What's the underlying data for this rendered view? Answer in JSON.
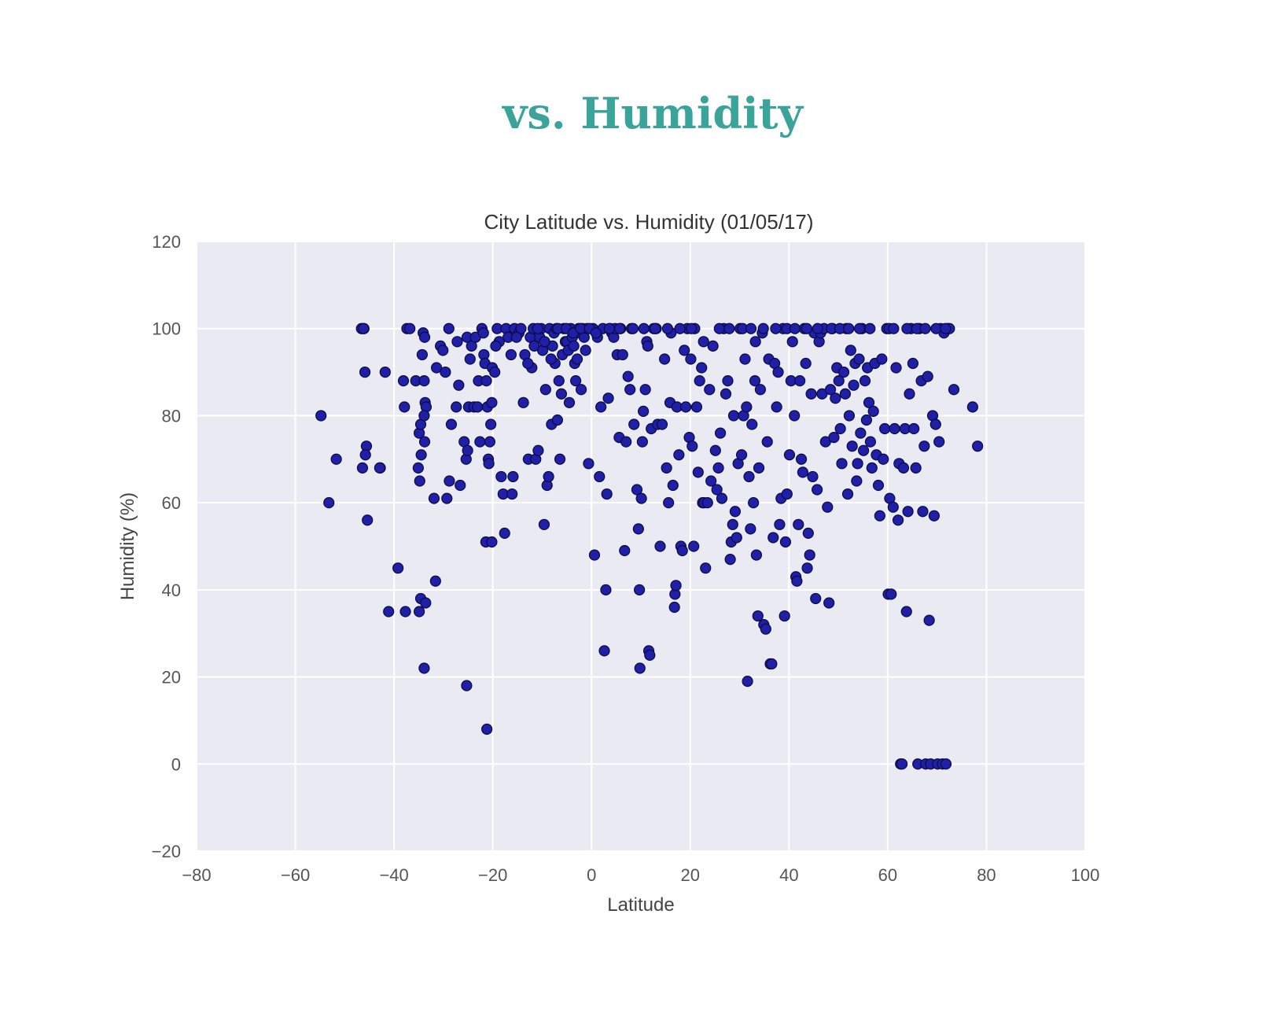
{
  "page": {
    "heading": "vs. Humidity"
  },
  "chart_data": {
    "type": "scatter",
    "title": "City Latitude vs. Humidity (01/05/17)",
    "xlabel": "Latitude",
    "ylabel": "Humidity (%)",
    "xlim": [
      -80,
      100
    ],
    "ylim": [
      -20,
      120
    ],
    "xticks": [
      -80,
      -60,
      -40,
      -20,
      0,
      20,
      40,
      60,
      80,
      100
    ],
    "yticks": [
      -20,
      0,
      20,
      40,
      60,
      80,
      100,
      120
    ],
    "xtick_labels": [
      "−80",
      "−60",
      "−40",
      "−20",
      "0",
      "20",
      "40",
      "60",
      "80",
      "100"
    ],
    "ytick_labels": [
      "−20",
      "0",
      "20",
      "40",
      "60",
      "80",
      "100",
      "120"
    ],
    "grid": true,
    "background_color": "#eaeaf2",
    "point_color": "#1f1fa8",
    "point_edge_color": "#0b0b40",
    "points": [
      [
        -54.8,
        80
      ],
      [
        -53.2,
        60
      ],
      [
        -51.7,
        70
      ],
      [
        -46.6,
        100
      ],
      [
        -46.1,
        100
      ],
      [
        -45.9,
        90
      ],
      [
        -45.6,
        73
      ],
      [
        -45.8,
        71
      ],
      [
        -46.4,
        68
      ],
      [
        -45.4,
        56
      ],
      [
        -42.8,
        68
      ],
      [
        -42.9,
        68
      ],
      [
        -41.8,
        90
      ],
      [
        -41.1,
        35
      ],
      [
        -39.2,
        45
      ],
      [
        -38.1,
        88
      ],
      [
        -37.9,
        82
      ],
      [
        -37.4,
        100
      ],
      [
        -37.7,
        35
      ],
      [
        -35.6,
        88
      ],
      [
        -35.1,
        68
      ],
      [
        -34.9,
        76
      ],
      [
        -34.6,
        78
      ],
      [
        -34.8,
        65
      ],
      [
        -34.5,
        71
      ],
      [
        -34.3,
        94
      ],
      [
        -34.1,
        99
      ],
      [
        -33.8,
        98
      ],
      [
        -33.9,
        88
      ],
      [
        -33.7,
        83
      ],
      [
        -33.5,
        82
      ],
      [
        -33.8,
        74
      ],
      [
        -33.9,
        80
      ],
      [
        -34.9,
        35
      ],
      [
        -34.6,
        38
      ],
      [
        -33.6,
        37
      ],
      [
        -33.9,
        22
      ],
      [
        -31.9,
        61
      ],
      [
        -31.6,
        42
      ],
      [
        -31.4,
        91
      ],
      [
        -30.6,
        96
      ],
      [
        -30.1,
        95
      ],
      [
        -29.6,
        90
      ],
      [
        -29.3,
        61
      ],
      [
        -28.9,
        100
      ],
      [
        -28.8,
        65
      ],
      [
        -28.4,
        78
      ],
      [
        -27.4,
        82
      ],
      [
        -26.9,
        87
      ],
      [
        -26.6,
        64
      ],
      [
        -25.8,
        74
      ],
      [
        -25.4,
        70
      ],
      [
        -25.1,
        72
      ],
      [
        -24.9,
        82
      ],
      [
        -25.2,
        98
      ],
      [
        -24.6,
        93
      ],
      [
        -24.3,
        96
      ],
      [
        -23.8,
        82
      ],
      [
        -23.5,
        98
      ],
      [
        -23.1,
        82
      ],
      [
        -22.9,
        88
      ],
      [
        -22.6,
        74
      ],
      [
        -22.2,
        100
      ],
      [
        -21.9,
        99
      ],
      [
        -21.8,
        94
      ],
      [
        -21.6,
        92
      ],
      [
        -21.3,
        88
      ],
      [
        -21.1,
        82
      ],
      [
        -20.9,
        70
      ],
      [
        -20.8,
        69
      ],
      [
        -20.6,
        74
      ],
      [
        -20.4,
        78
      ],
      [
        -20.2,
        83
      ],
      [
        -20.1,
        91
      ],
      [
        -19.6,
        90
      ],
      [
        -21.4,
        51
      ],
      [
        -20.2,
        51
      ],
      [
        -25.3,
        18
      ],
      [
        -21.2,
        8
      ],
      [
        -19.1,
        100
      ],
      [
        -18.7,
        97
      ],
      [
        -18.3,
        66
      ],
      [
        -17.9,
        62
      ],
      [
        -17.6,
        53
      ],
      [
        -17.3,
        100
      ],
      [
        -16.9,
        98
      ],
      [
        -16.3,
        94
      ],
      [
        -16.1,
        62
      ],
      [
        -15.9,
        66
      ],
      [
        -15.6,
        100
      ],
      [
        -14.7,
        99
      ],
      [
        -14.3,
        100
      ],
      [
        -13.8,
        83
      ],
      [
        -13.5,
        94
      ],
      [
        -12.8,
        70
      ],
      [
        -12.4,
        98
      ],
      [
        -12.1,
        91
      ],
      [
        -11.8,
        100
      ],
      [
        -11.6,
        96
      ],
      [
        -11.3,
        70
      ],
      [
        -10.8,
        72
      ],
      [
        -10.5,
        98
      ],
      [
        -10.2,
        100
      ],
      [
        -9.9,
        95
      ],
      [
        -9.6,
        55
      ],
      [
        -9.3,
        86
      ],
      [
        -9.0,
        64
      ],
      [
        -8.7,
        66
      ],
      [
        -8.5,
        100
      ],
      [
        -8.1,
        78
      ],
      [
        -7.9,
        96
      ],
      [
        -7.6,
        99
      ],
      [
        -7.4,
        92
      ],
      [
        -7.1,
        100
      ],
      [
        -6.9,
        79
      ],
      [
        -6.6,
        88
      ],
      [
        -6.4,
        70
      ],
      [
        -6.1,
        85
      ],
      [
        -5.9,
        94
      ],
      [
        -5.6,
        100
      ],
      [
        -5.3,
        97
      ],
      [
        -5.0,
        97
      ],
      [
        -4.7,
        95
      ],
      [
        -4.5,
        83
      ],
      [
        -4.2,
        100
      ],
      [
        -3.9,
        98
      ],
      [
        -3.6,
        96
      ],
      [
        -3.4,
        92
      ],
      [
        -3.2,
        88
      ],
      [
        -2.9,
        93
      ],
      [
        -2.6,
        100
      ],
      [
        -2.4,
        99
      ],
      [
        -2.1,
        86
      ],
      [
        -1.8,
        100
      ],
      [
        -1.5,
        98
      ],
      [
        -1.2,
        95
      ],
      [
        -0.9,
        100
      ],
      [
        -0.6,
        69
      ],
      [
        0.3,
        100
      ],
      [
        0.6,
        48
      ],
      [
        1.2,
        98
      ],
      [
        1.6,
        66
      ],
      [
        1.9,
        82
      ],
      [
        2.3,
        100
      ],
      [
        2.6,
        26
      ],
      [
        2.9,
        40
      ],
      [
        3.1,
        62
      ],
      [
        3.4,
        84
      ],
      [
        3.8,
        100
      ],
      [
        4.1,
        99
      ],
      [
        4.5,
        98
      ],
      [
        4.8,
        100
      ],
      [
        5.2,
        94
      ],
      [
        5.6,
        75
      ],
      [
        5.9,
        100
      ],
      [
        6.3,
        94
      ],
      [
        6.7,
        49
      ],
      [
        7.0,
        74
      ],
      [
        7.4,
        89
      ],
      [
        7.8,
        86
      ],
      [
        8.1,
        100
      ],
      [
        8.6,
        78
      ],
      [
        9.2,
        63
      ],
      [
        9.5,
        54
      ],
      [
        9.7,
        40
      ],
      [
        9.8,
        22
      ],
      [
        10.1,
        61
      ],
      [
        10.3,
        74
      ],
      [
        10.5,
        81
      ],
      [
        10.9,
        86
      ],
      [
        11.2,
        97
      ],
      [
        11.4,
        96
      ],
      [
        11.6,
        26
      ],
      [
        11.8,
        25
      ],
      [
        12.1,
        77
      ],
      [
        12.6,
        100
      ],
      [
        13.1,
        100
      ],
      [
        13.4,
        78
      ],
      [
        13.9,
        50
      ],
      [
        14.3,
        78
      ],
      [
        14.8,
        93
      ],
      [
        15.2,
        68
      ],
      [
        15.6,
        60
      ],
      [
        15.9,
        83
      ],
      [
        16.1,
        99
      ],
      [
        16.5,
        64
      ],
      [
        16.9,
        39
      ],
      [
        17.1,
        41
      ],
      [
        16.8,
        36
      ],
      [
        17.3,
        82
      ],
      [
        17.7,
        71
      ],
      [
        18.1,
        50
      ],
      [
        18.4,
        49
      ],
      [
        18.8,
        95
      ],
      [
        19.1,
        82
      ],
      [
        19.4,
        100
      ],
      [
        19.8,
        75
      ],
      [
        20.1,
        93
      ],
      [
        20.4,
        73
      ],
      [
        20.7,
        50
      ],
      [
        20.9,
        100
      ],
      [
        21.3,
        82
      ],
      [
        21.6,
        67
      ],
      [
        21.9,
        88
      ],
      [
        22.3,
        91
      ],
      [
        22.5,
        60
      ],
      [
        22.8,
        60
      ],
      [
        23.1,
        45
      ],
      [
        23.5,
        60
      ],
      [
        23.9,
        86
      ],
      [
        24.2,
        65
      ],
      [
        24.6,
        96
      ],
      [
        25.1,
        72
      ],
      [
        25.4,
        63
      ],
      [
        25.7,
        68
      ],
      [
        26.1,
        76
      ],
      [
        26.4,
        61
      ],
      [
        26.8,
        100
      ],
      [
        27.2,
        85
      ],
      [
        27.6,
        88
      ],
      [
        28.1,
        47
      ],
      [
        28.3,
        51
      ],
      [
        28.6,
        55
      ],
      [
        28.8,
        80
      ],
      [
        29.1,
        58
      ],
      [
        29.4,
        52
      ],
      [
        29.7,
        69
      ],
      [
        30.1,
        100
      ],
      [
        30.4,
        71
      ],
      [
        30.8,
        80
      ],
      [
        31.1,
        93
      ],
      [
        31.4,
        82
      ],
      [
        31.6,
        19
      ],
      [
        31.9,
        66
      ],
      [
        32.2,
        54
      ],
      [
        32.5,
        78
      ],
      [
        32.8,
        60
      ],
      [
        33.1,
        88
      ],
      [
        33.4,
        48
      ],
      [
        33.7,
        34
      ],
      [
        33.9,
        68
      ],
      [
        34.2,
        86
      ],
      [
        34.6,
        99
      ],
      [
        34.9,
        32
      ],
      [
        35.3,
        31
      ],
      [
        35.6,
        74
      ],
      [
        35.9,
        93
      ],
      [
        36.2,
        23
      ],
      [
        36.5,
        23
      ],
      [
        36.8,
        52
      ],
      [
        37.1,
        92
      ],
      [
        37.5,
        82
      ],
      [
        37.8,
        90
      ],
      [
        38.1,
        55
      ],
      [
        38.4,
        61
      ],
      [
        38.8,
        100
      ],
      [
        39.1,
        34
      ],
      [
        39.3,
        51
      ],
      [
        39.6,
        62
      ],
      [
        40.1,
        71
      ],
      [
        40.4,
        88
      ],
      [
        40.7,
        97
      ],
      [
        41.1,
        80
      ],
      [
        41.4,
        43
      ],
      [
        41.6,
        42
      ],
      [
        41.9,
        55
      ],
      [
        42.2,
        88
      ],
      [
        42.5,
        70
      ],
      [
        42.8,
        67
      ],
      [
        43.1,
        100
      ],
      [
        43.4,
        92
      ],
      [
        43.7,
        45
      ],
      [
        43.9,
        53
      ],
      [
        44.2,
        48
      ],
      [
        44.5,
        85
      ],
      [
        44.8,
        66
      ],
      [
        45.1,
        99
      ],
      [
        45.4,
        38
      ],
      [
        45.7,
        63
      ],
      [
        46.1,
        97
      ],
      [
        46.4,
        99
      ],
      [
        46.7,
        85
      ],
      [
        47.1,
        100
      ],
      [
        47.4,
        74
      ],
      [
        47.8,
        59
      ],
      [
        48.1,
        37
      ],
      [
        48.4,
        86
      ],
      [
        48.8,
        100
      ],
      [
        49.1,
        75
      ],
      [
        49.4,
        84
      ],
      [
        49.7,
        91
      ],
      [
        50.1,
        88
      ],
      [
        50.4,
        77
      ],
      [
        50.7,
        69
      ],
      [
        51.1,
        90
      ],
      [
        51.4,
        85
      ],
      [
        51.6,
        100
      ],
      [
        51.9,
        62
      ],
      [
        52.2,
        80
      ],
      [
        52.5,
        95
      ],
      [
        52.8,
        73
      ],
      [
        53.1,
        87
      ],
      [
        53.4,
        92
      ],
      [
        53.7,
        65
      ],
      [
        53.9,
        69
      ],
      [
        54.2,
        93
      ],
      [
        54.5,
        76
      ],
      [
        54.8,
        100
      ],
      [
        55.1,
        72
      ],
      [
        55.4,
        88
      ],
      [
        55.7,
        79
      ],
      [
        55.9,
        91
      ],
      [
        56.2,
        83
      ],
      [
        56.5,
        74
      ],
      [
        56.8,
        68
      ],
      [
        57.1,
        81
      ],
      [
        57.4,
        92
      ],
      [
        57.7,
        71
      ],
      [
        58.1,
        64
      ],
      [
        58.4,
        57
      ],
      [
        58.8,
        93
      ],
      [
        59.1,
        70
      ],
      [
        59.4,
        77
      ],
      [
        59.8,
        100
      ],
      [
        60.1,
        39
      ],
      [
        60.4,
        61
      ],
      [
        60.7,
        39
      ],
      [
        61.1,
        59
      ],
      [
        61.4,
        77
      ],
      [
        61.7,
        91
      ],
      [
        62.1,
        56
      ],
      [
        62.3,
        69
      ],
      [
        62.6,
        0
      ],
      [
        62.9,
        0
      ],
      [
        63.2,
        68
      ],
      [
        63.5,
        77
      ],
      [
        63.8,
        35
      ],
      [
        64.1,
        58
      ],
      [
        64.4,
        85
      ],
      [
        64.7,
        100
      ],
      [
        65.1,
        92
      ],
      [
        65.3,
        77
      ],
      [
        65.7,
        68
      ],
      [
        66.1,
        0
      ],
      [
        66.4,
        100
      ],
      [
        66.8,
        88
      ],
      [
        67.1,
        58
      ],
      [
        67.4,
        73
      ],
      [
        67.7,
        0
      ],
      [
        68.1,
        89
      ],
      [
        68.4,
        33
      ],
      [
        68.7,
        0
      ],
      [
        69.1,
        80
      ],
      [
        69.4,
        57
      ],
      [
        69.7,
        78
      ],
      [
        70.1,
        0
      ],
      [
        70.4,
        74
      ],
      [
        70.7,
        100
      ],
      [
        71.1,
        0
      ],
      [
        71.4,
        99
      ],
      [
        71.8,
        0
      ],
      [
        72.1,
        100
      ],
      [
        72.5,
        100
      ],
      [
        73.4,
        86
      ],
      [
        77.2,
        82
      ],
      [
        78.2,
        73
      ],
      [
        -46.2,
        100
      ],
      [
        -36.8,
        100
      ],
      [
        -27.2,
        97
      ],
      [
        -19.4,
        96
      ],
      [
        -15.2,
        98
      ],
      [
        -12.9,
        92
      ],
      [
        -10.9,
        100
      ],
      [
        -9.5,
        97
      ],
      [
        -8.2,
        93
      ],
      [
        -6.8,
        100
      ],
      [
        -5.1,
        100
      ],
      [
        -3.7,
        99
      ],
      [
        -2.2,
        100
      ],
      [
        -0.4,
        100
      ],
      [
        0.9,
        99
      ],
      [
        3.6,
        100
      ],
      [
        5.7,
        100
      ],
      [
        8.4,
        100
      ],
      [
        10.6,
        100
      ],
      [
        12.9,
        100
      ],
      [
        15.4,
        100
      ],
      [
        17.9,
        100
      ],
      [
        20.2,
        100
      ],
      [
        22.7,
        97
      ],
      [
        25.9,
        100
      ],
      [
        27.9,
        100
      ],
      [
        30.6,
        100
      ],
      [
        32.3,
        100
      ],
      [
        33.2,
        97
      ],
      [
        34.8,
        100
      ],
      [
        37.3,
        100
      ],
      [
        39.6,
        100
      ],
      [
        41.2,
        100
      ],
      [
        43.6,
        100
      ],
      [
        45.8,
        100
      ],
      [
        48.6,
        100
      ],
      [
        50.3,
        100
      ],
      [
        52.1,
        100
      ],
      [
        54.3,
        100
      ],
      [
        56.4,
        100
      ],
      [
        60.3,
        100
      ],
      [
        61.2,
        100
      ],
      [
        63.9,
        100
      ],
      [
        65.9,
        100
      ],
      [
        67.6,
        100
      ],
      [
        69.8,
        100
      ],
      [
        71.7,
        100
      ]
    ]
  }
}
